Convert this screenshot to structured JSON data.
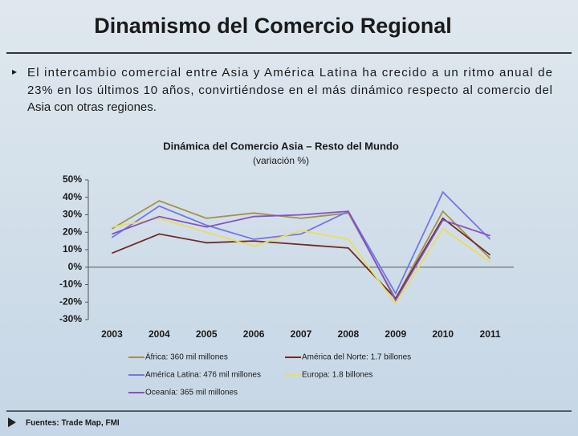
{
  "header": {
    "title": "Dinamismo del Comercio Regional"
  },
  "bullet": {
    "lines": [
      "El intercambio comercial entre Asia y América Latina ha crecido a un ritmo anual de",
      "23% en los últimos 10 años, convirtiéndose en el más dinámico respecto al comercio del",
      "Asia con otras regiones."
    ]
  },
  "chart_data": {
    "type": "line",
    "title": "Dinámica del Comercio Asia – Resto del Mundo",
    "subtitle": "(variación %)",
    "categories": [
      "2003",
      "2004",
      "2005",
      "2006",
      "2007",
      "2008",
      "2009",
      "2010",
      "2011"
    ],
    "ylim": [
      -30,
      50
    ],
    "yticks": [
      {
        "value": 50,
        "label": "50%"
      },
      {
        "value": 40,
        "label": "40%"
      },
      {
        "value": 30,
        "label": "30%"
      },
      {
        "value": 20,
        "label": "20%"
      },
      {
        "value": 10,
        "label": "10%"
      },
      {
        "value": 0,
        "label": "0%"
      },
      {
        "value": -10,
        "label": "-10%"
      },
      {
        "value": -20,
        "label": "-20%"
      },
      {
        "value": -30,
        "label": "-30%"
      }
    ],
    "series": [
      {
        "name": "África: 360 mil millones",
        "color": "#a3924a",
        "values": [
          22,
          38,
          28,
          31,
          28,
          31,
          -18,
          32,
          5
        ]
      },
      {
        "name": "América del Norte: 1.7 billones",
        "color": "#6e2c22",
        "values": [
          8,
          19,
          14,
          15,
          13,
          11,
          -18,
          28,
          7
        ]
      },
      {
        "name": "América Latina: 476 mil millones",
        "color": "#7676e6",
        "values": [
          17,
          35,
          24,
          16,
          19,
          32,
          -15,
          43,
          16
        ]
      },
      {
        "name": "Europa: 1.8 billones",
        "color": "#e6df5e",
        "values": [
          23,
          28,
          20,
          12,
          21,
          16,
          -21,
          22,
          3
        ]
      },
      {
        "name": "Oceanía: 365 mil millones",
        "color": "#8452c4",
        "values": [
          19,
          29,
          23,
          29,
          30,
          32,
          -19,
          27,
          18
        ]
      }
    ]
  },
  "source": "Fuentes: Trade Map, FMI"
}
